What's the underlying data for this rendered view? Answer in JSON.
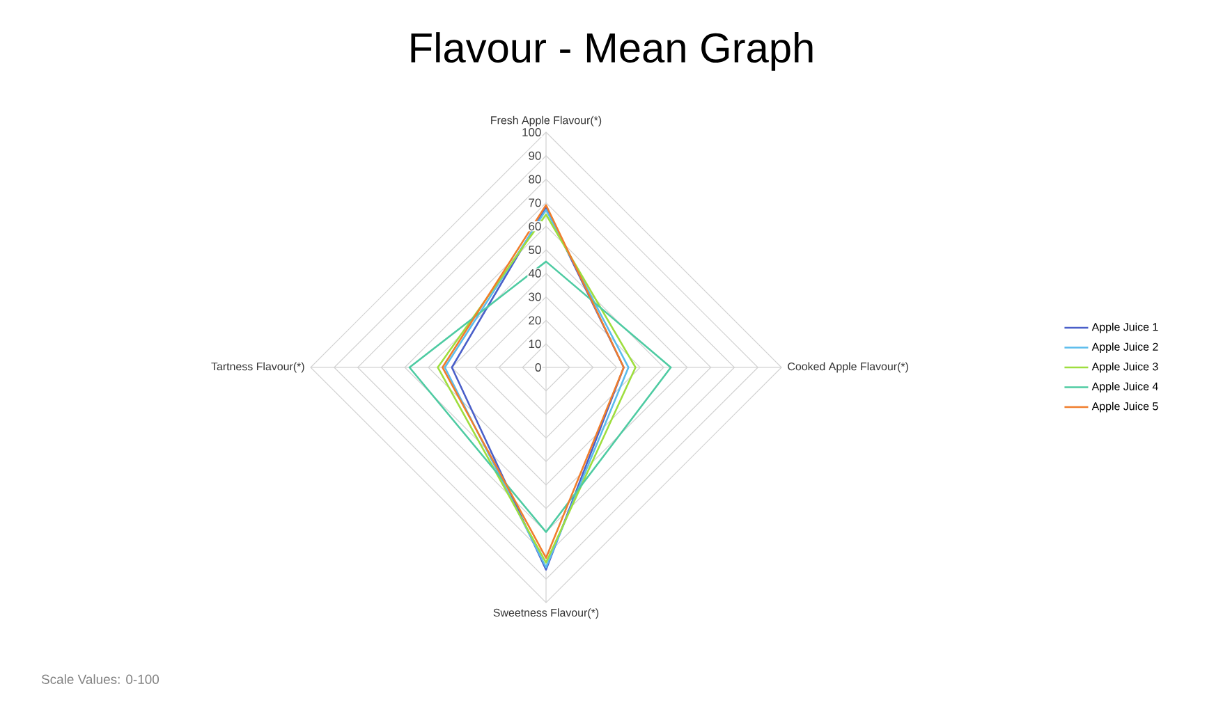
{
  "chart_data": {
    "type": "radar",
    "title": "Flavour - Mean Graph",
    "categories": [
      "Fresh Apple Flavour(*)",
      "Cooked Apple Flavour(*)",
      "Sweetness Flavour(*)",
      "Tartness Flavour(*)"
    ],
    "series": [
      {
        "name": "Apple Juice 1",
        "color": "#4a5fc9",
        "values": [
          68,
          33,
          86,
          40
        ]
      },
      {
        "name": "Apple Juice 2",
        "color": "#5bbcec",
        "values": [
          67,
          35,
          85,
          43
        ]
      },
      {
        "name": "Apple Juice 3",
        "color": "#9ede3e",
        "values": [
          65,
          38,
          83,
          46
        ]
      },
      {
        "name": "Apple Juice 4",
        "color": "#4ecba2",
        "values": [
          45,
          53,
          70,
          58
        ]
      },
      {
        "name": "Apple Juice 5",
        "color": "#f07d2c",
        "values": [
          69,
          33,
          81,
          44
        ]
      }
    ],
    "ylim": [
      0,
      100
    ],
    "yticks": [
      0,
      10,
      20,
      30,
      40,
      50,
      60,
      70,
      80,
      90,
      100
    ],
    "grid": true,
    "legend": "right",
    "annotations": [
      "Scale Values: 0-100"
    ]
  }
}
